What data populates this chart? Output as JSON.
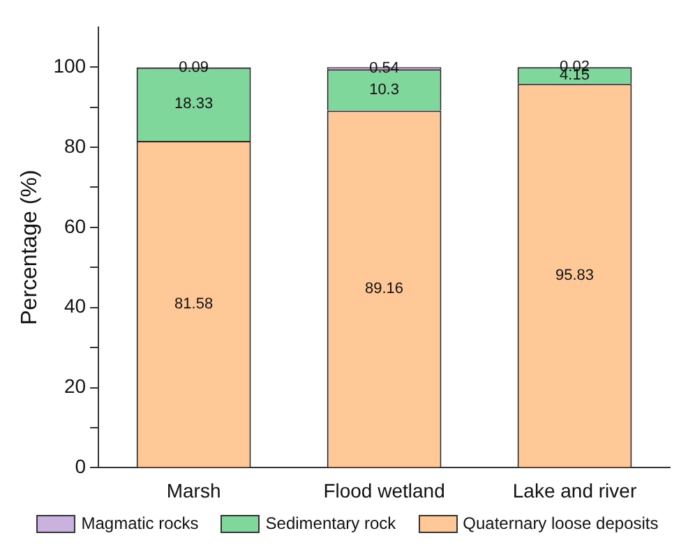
{
  "chart_data": {
    "type": "bar",
    "stacked": true,
    "ylabel": "Percentage (%)",
    "categories": [
      "Marsh",
      "Flood wetland",
      "Lake and river"
    ],
    "series": [
      {
        "name": "Quaternary loose deposits",
        "color": "#ffc896",
        "values": [
          81.58,
          89.16,
          95.83
        ]
      },
      {
        "name": "Sedimentary rock",
        "color": "#7fd79b",
        "values": [
          18.33,
          10.3,
          4.15
        ]
      },
      {
        "name": "Magmatic rocks",
        "color": "#c9b3de",
        "values": [
          0.09,
          0.54,
          0.02
        ]
      }
    ],
    "data_labels": true,
    "ylim": [
      0,
      110
    ],
    "yticks": [
      0,
      {
        "value": 10,
        "label": null
      },
      20,
      {
        "value": 30,
        "label": null
      },
      40,
      {
        "value": 50,
        "label": null
      },
      60,
      {
        "value": 70,
        "label": null
      },
      80,
      {
        "value": 90,
        "label": null
      },
      100
    ],
    "grid": false,
    "legend": "bottom"
  }
}
